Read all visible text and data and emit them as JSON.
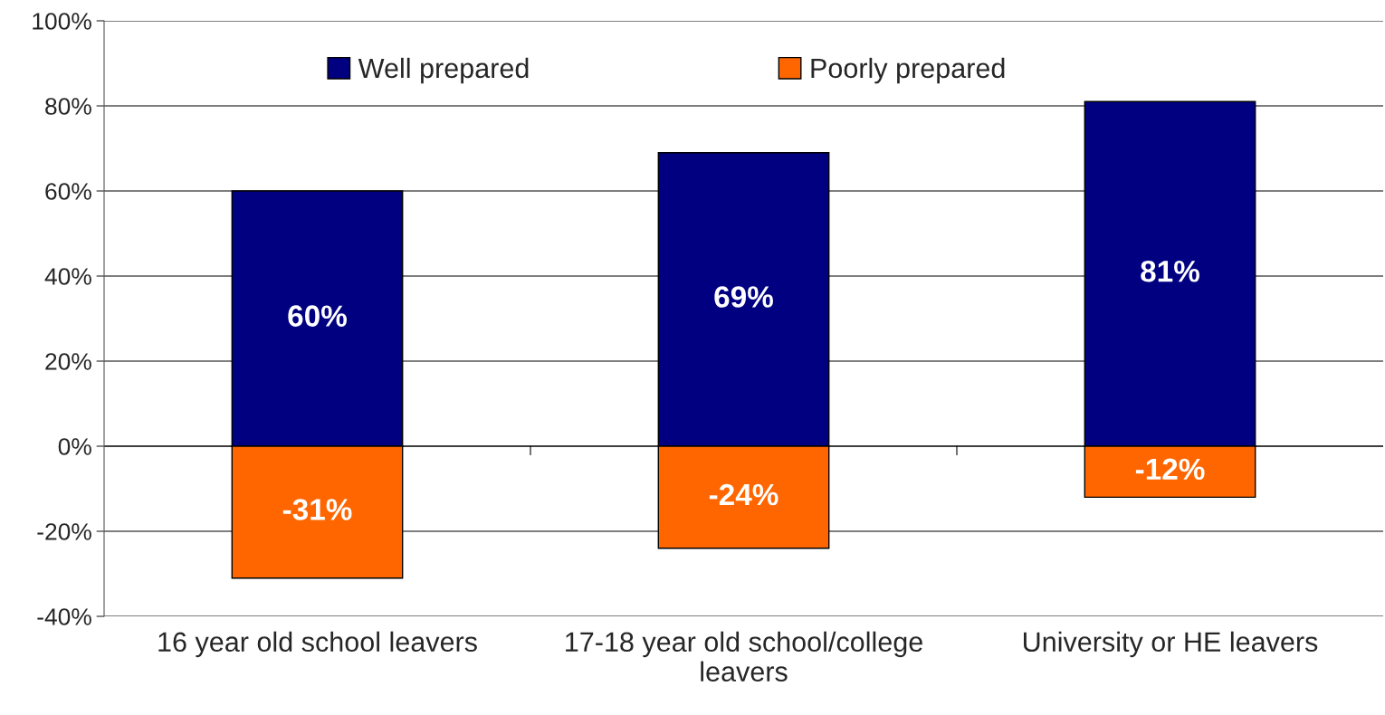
{
  "chart_data": {
    "type": "bar",
    "stacked": true,
    "categories": [
      "16 year old school leavers",
      "17-18 year old school/college\nleavers",
      "University or HE leavers"
    ],
    "series": [
      {
        "name": "Well prepared",
        "color": "#000080",
        "values": [
          60,
          69,
          81
        ],
        "value_labels": [
          "60%",
          "69%",
          "81%"
        ]
      },
      {
        "name": "Poorly prepared",
        "color": "#ff6600",
        "values": [
          -31,
          -24,
          -12
        ],
        "value_labels": [
          "-31%",
          "-24%",
          "-12%"
        ]
      }
    ],
    "ylim": [
      -40,
      100
    ],
    "yticks": [
      {
        "value": -40,
        "label": "-40%"
      },
      {
        "value": -20,
        "label": "-20%"
      },
      {
        "value": 0,
        "label": "0%"
      },
      {
        "value": 20,
        "label": "20%"
      },
      {
        "value": 40,
        "label": "40%"
      },
      {
        "value": 60,
        "label": "60%"
      },
      {
        "value": 80,
        "label": "80%"
      },
      {
        "value": 100,
        "label": "100%"
      }
    ],
    "grid": "y",
    "legend": "top"
  }
}
